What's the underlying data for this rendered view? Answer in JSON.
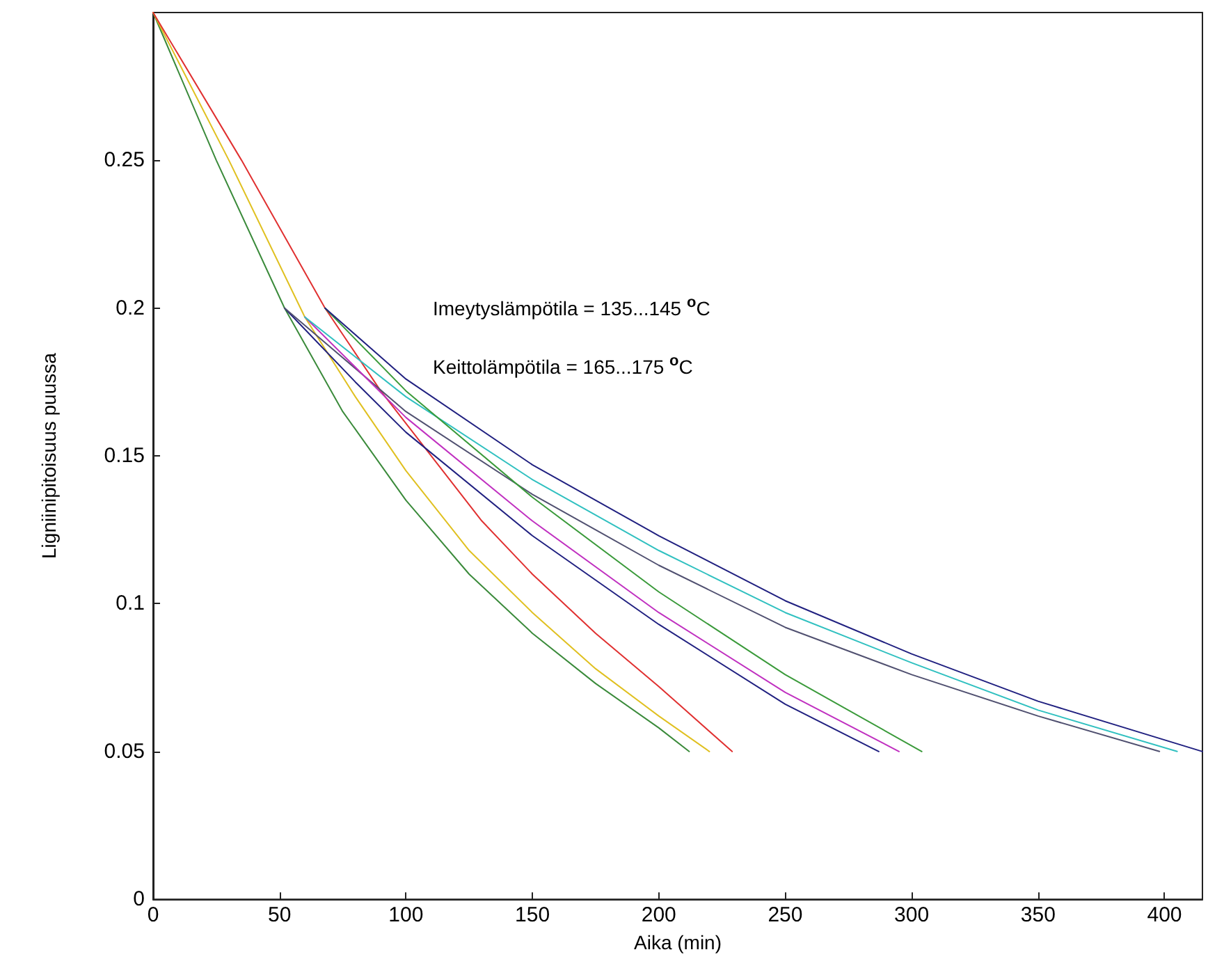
{
  "chart_data": {
    "type": "line",
    "xlabel": "Aika (min)",
    "ylabel": "Ligniinipitoisuus puussa",
    "annotations": [
      "Imeytyslämpötila = 135...145 $^{o}$C",
      "Keittolämpötila = 165...175 $^{o}$C"
    ],
    "xlim": [
      0,
      415
    ],
    "xticks": [
      0,
      50,
      100,
      150,
      200,
      250,
      300,
      350,
      400
    ],
    "ylim": [
      0,
      0.3
    ],
    "yticks": [
      0,
      0.05,
      0.1,
      0.15,
      0.2,
      0.25
    ],
    "grid": false,
    "marker": "none",
    "line_style": "solid",
    "series": [
      {
        "color": "#3a8a3a",
        "x": [
          0,
          25,
          52,
          75,
          100,
          125,
          150,
          175,
          200,
          212
        ],
        "values": [
          0.3,
          0.25,
          0.2,
          0.165,
          0.135,
          0.11,
          0.09,
          0.073,
          0.058,
          0.05
        ]
      },
      {
        "color": "#e0c020",
        "x": [
          0,
          30,
          60,
          80,
          100,
          125,
          150,
          175,
          200,
          220
        ],
        "values": [
          0.3,
          0.25,
          0.197,
          0.17,
          0.145,
          0.118,
          0.097,
          0.078,
          0.062,
          0.05
        ]
      },
      {
        "color": "#e03030",
        "x": [
          0,
          35,
          68,
          90,
          110,
          130,
          150,
          175,
          200,
          229
        ],
        "values": [
          0.3,
          0.25,
          0.2,
          0.172,
          0.15,
          0.128,
          0.11,
          0.09,
          0.072,
          0.05
        ]
      },
      {
        "color": "#202080",
        "x": [
          52,
          80,
          100,
          150,
          200,
          250,
          287
        ],
        "values": [
          0.2,
          0.175,
          0.158,
          0.123,
          0.093,
          0.066,
          0.05
        ]
      },
      {
        "color": "#505070",
        "x": [
          52,
          100,
          150,
          200,
          250,
          300,
          350,
          398
        ],
        "values": [
          0.2,
          0.165,
          0.137,
          0.113,
          0.092,
          0.076,
          0.062,
          0.05
        ]
      },
      {
        "color": "#c030c0",
        "x": [
          60,
          100,
          150,
          200,
          250,
          295
        ],
        "values": [
          0.197,
          0.163,
          0.128,
          0.097,
          0.07,
          0.05
        ]
      },
      {
        "color": "#30c0c0",
        "x": [
          60,
          100,
          150,
          200,
          250,
          300,
          350,
          405
        ],
        "values": [
          0.197,
          0.17,
          0.142,
          0.118,
          0.097,
          0.08,
          0.064,
          0.05
        ]
      },
      {
        "color": "#3a9a3a",
        "x": [
          68,
          100,
          150,
          200,
          250,
          304
        ],
        "values": [
          0.2,
          0.172,
          0.136,
          0.104,
          0.076,
          0.05
        ]
      },
      {
        "color": "#202080",
        "x": [
          68,
          100,
          150,
          200,
          250,
          300,
          350,
          415
        ],
        "values": [
          0.2,
          0.176,
          0.147,
          0.123,
          0.101,
          0.083,
          0.067,
          0.05
        ]
      }
    ]
  }
}
